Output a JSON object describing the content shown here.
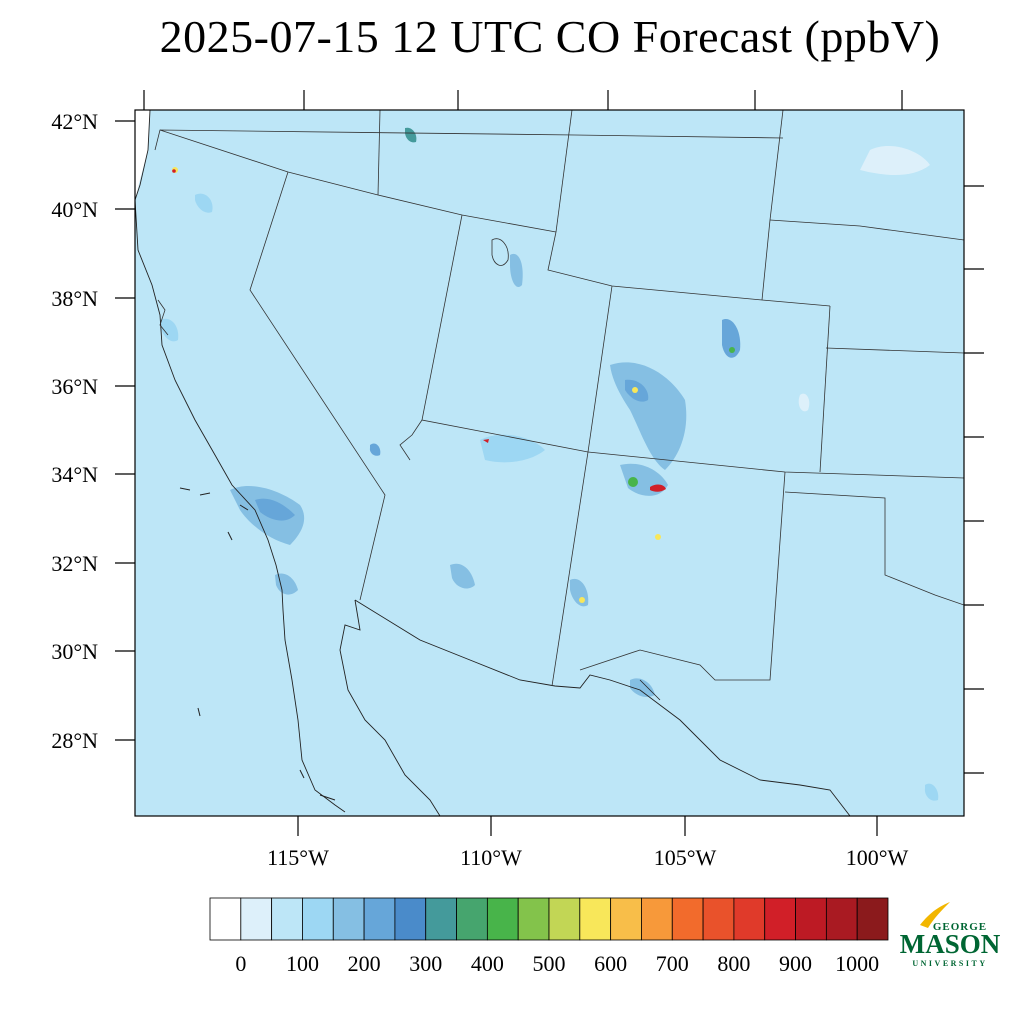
{
  "title": "2025-07-15 12 UTC CO Forecast (ppbV)",
  "lat_labels": [
    "42°N",
    "40°N",
    "38°N",
    "36°N",
    "34°N",
    "32°N",
    "30°N",
    "28°N"
  ],
  "lon_labels": [
    "115°W",
    "110°W",
    "105°W",
    "100°W"
  ],
  "colorbar": {
    "labels": [
      "0",
      "100",
      "200",
      "300",
      "400",
      "500",
      "600",
      "700",
      "800",
      "900",
      "1000"
    ],
    "colors": [
      "#ffffff",
      "#ddf0fa",
      "#bde6f7",
      "#9dd7f3",
      "#85bfe3",
      "#66a6d9",
      "#4a8bca",
      "#449a9b",
      "#46a56e",
      "#48b44a",
      "#83c34b",
      "#c2d655",
      "#f8e75a",
      "#f8be49",
      "#f7993a",
      "#f26b2c",
      "#e9522b",
      "#e03a2a",
      "#d11f28",
      "#bd1a24",
      "#a91a22",
      "#8b1a1c"
    ]
  },
  "map": {
    "background_color": "#bde6f7",
    "hotspot_colors": [
      "#85bfe3",
      "#66a6d9",
      "#48b44a",
      "#f8e75a",
      "#d11f28"
    ]
  },
  "logo": {
    "line1": "GEORGE",
    "line2": "MASON",
    "line3": "UNIVERSITY",
    "color": "#006633",
    "accent": "#f2b600"
  }
}
